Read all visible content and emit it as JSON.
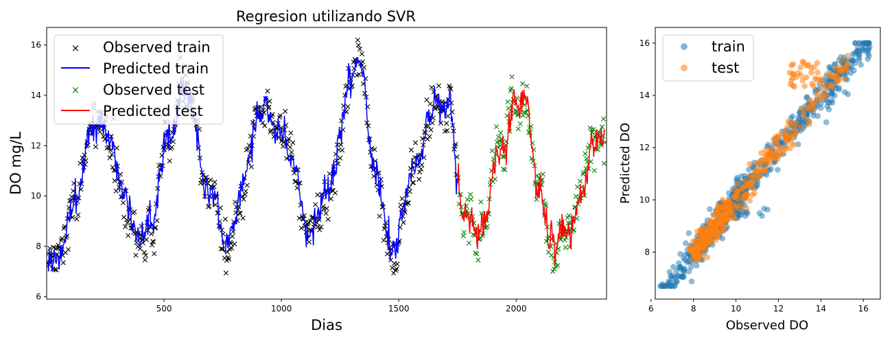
{
  "chart_data": [
    {
      "type": "line",
      "title": "Regresion utilizando SVR",
      "xlabel": "Dias",
      "ylabel": "DO mg/L",
      "xlim": [
        0,
        2385
      ],
      "ylim": [
        5.9,
        16.7
      ],
      "xticks": [
        500,
        1000,
        1500,
        2000
      ],
      "yticks": [
        6,
        8,
        10,
        12,
        14,
        16
      ],
      "legend_position": "top-left",
      "train_end_day": 1750,
      "anchors_day": [
        0,
        60,
        120,
        200,
        280,
        330,
        390,
        450,
        520,
        600,
        680,
        760,
        840,
        920,
        1000,
        1050,
        1110,
        1200,
        1300,
        1330,
        1400,
        1480,
        1560,
        1650,
        1720,
        1750,
        1780,
        1860,
        1940,
        2000,
        2040,
        2090,
        2150,
        2230,
        2290,
        2330,
        2385
      ],
      "anchors_do": [
        7.6,
        7.6,
        9.8,
        12.9,
        12.4,
        10.3,
        8.5,
        9.2,
        12.5,
        14.2,
        10.5,
        8.3,
        10.6,
        13.8,
        12.8,
        11.0,
        8.5,
        10.5,
        14.7,
        15.4,
        11.0,
        8.0,
        10.8,
        13.6,
        13.8,
        10.2,
        9.0,
        8.9,
        11.8,
        13.8,
        13.7,
        10.2,
        8.8,
        8.4,
        10.2,
        12.3,
        12.9
      ],
      "series": [
        {
          "name": "Observed train",
          "marker": "x",
          "color": "#000000"
        },
        {
          "name": "Predicted train",
          "line": "solid",
          "color": "#0000ff"
        },
        {
          "name": "Observed test",
          "marker": "x",
          "color": "#008000"
        },
        {
          "name": "Predicted test",
          "line": "solid",
          "color": "#ff0000"
        }
      ]
    },
    {
      "type": "scatter",
      "xlabel": "Observed DO",
      "ylabel": "Predicted DO",
      "xlim": [
        6.2,
        16.8
      ],
      "ylim": [
        6.2,
        16.6
      ],
      "xticks": [
        6,
        8,
        10,
        12,
        14,
        16
      ],
      "yticks": [
        8,
        10,
        12,
        14,
        16
      ],
      "legend_position": "top-left",
      "series": [
        {
          "name": "train",
          "color": "#1f77b4",
          "x_range": [
            6.4,
            16.3
          ]
        },
        {
          "name": "test",
          "color": "#ff7f0e",
          "x_range": [
            7.8,
            15.3
          ]
        }
      ]
    }
  ]
}
